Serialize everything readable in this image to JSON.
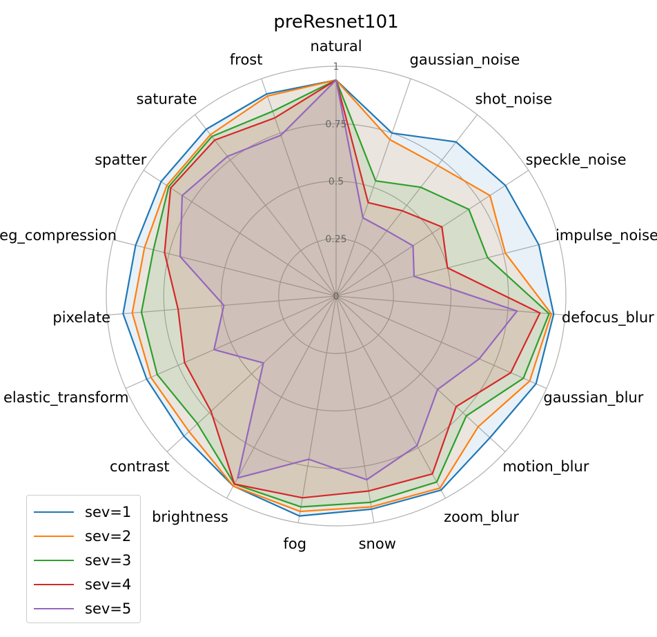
{
  "chart_data": {
    "type": "radar",
    "title": "preResnet101",
    "categories": [
      "natural",
      "gaussian_noise",
      "shot_noise",
      "speckle_noise",
      "impulse_noise",
      "defocus_blur",
      "gaussian_blur",
      "motion_blur",
      "zoom_blur",
      "snow",
      "fog",
      "brightness",
      "contrast",
      "elastic_transform",
      "pixelate",
      "jpeg_compression",
      "spatter",
      "saturate",
      "frost"
    ],
    "rlim": [
      0,
      1
    ],
    "rticks": [
      0,
      0.25,
      0.5,
      0.75,
      1
    ],
    "rtick_labels": [
      "0",
      "0.25",
      "0.5",
      "0.75",
      "1"
    ],
    "grid": true,
    "legend": "bottom-left",
    "series": [
      {
        "name": "sev=1",
        "color": "#1f77b4",
        "values": [
          0.94,
          0.75,
          0.85,
          0.88,
          0.91,
          0.95,
          0.95,
          0.91,
          0.96,
          0.94,
          0.97,
          0.94,
          0.9,
          0.9,
          0.93,
          0.9,
          0.91,
          0.92,
          0.93
        ]
      },
      {
        "name": "sev=2",
        "color": "#ff7f0e",
        "values": [
          0.94,
          0.72,
          0.72,
          0.8,
          0.76,
          0.94,
          0.92,
          0.84,
          0.95,
          0.93,
          0.95,
          0.94,
          0.87,
          0.88,
          0.89,
          0.86,
          0.88,
          0.89,
          0.92
        ]
      },
      {
        "name": "sev=3",
        "color": "#2ca02c",
        "values": [
          0.94,
          0.53,
          0.6,
          0.69,
          0.68,
          0.93,
          0.89,
          0.77,
          0.92,
          0.91,
          0.93,
          0.93,
          0.82,
          0.85,
          0.85,
          0.82,
          0.87,
          0.88,
          0.85
        ]
      },
      {
        "name": "sev=4",
        "color": "#d62728",
        "values": [
          0.94,
          0.43,
          0.47,
          0.55,
          0.5,
          0.89,
          0.83,
          0.71,
          0.88,
          0.86,
          0.89,
          0.93,
          0.74,
          0.72,
          0.69,
          0.77,
          0.86,
          0.86,
          0.82
        ]
      },
      {
        "name": "sev=5",
        "color": "#9467bd",
        "values": [
          0.94,
          0.36,
          0.36,
          0.4,
          0.35,
          0.79,
          0.68,
          0.6,
          0.74,
          0.81,
          0.72,
          0.9,
          0.43,
          0.58,
          0.49,
          0.7,
          0.8,
          0.77,
          0.74
        ]
      }
    ]
  }
}
